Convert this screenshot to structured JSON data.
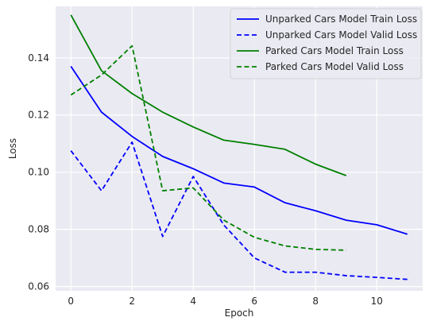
{
  "chart_data": {
    "type": "line",
    "xlabel": "Epoch",
    "ylabel": "Loss",
    "xlim": [
      -0.5,
      11.5
    ],
    "ylim": [
      0.0585,
      0.158
    ],
    "xticks": [
      0,
      2,
      4,
      6,
      8,
      10
    ],
    "yticks": [
      0.06,
      0.08,
      0.1,
      0.12,
      0.14
    ],
    "xtick_labels": [
      "0",
      "2",
      "4",
      "6",
      "8",
      "10"
    ],
    "ytick_labels": [
      "0.06",
      "0.08",
      "0.10",
      "0.12",
      "0.14"
    ],
    "grid": true,
    "legend_position": "top-right",
    "series": [
      {
        "name": "Unparked Cars Model Train Loss",
        "color": "#0000ff",
        "dash": "solid",
        "x": [
          0,
          1,
          2,
          3,
          4,
          5,
          6,
          7,
          8,
          9,
          10,
          11
        ],
        "y": [
          0.137,
          0.121,
          0.1125,
          0.1055,
          0.1012,
          0.0962,
          0.0948,
          0.0893,
          0.0865,
          0.0832,
          0.0816,
          0.0783
        ]
      },
      {
        "name": "Unparked Cars Model Valid Loss",
        "color": "#0000ff",
        "dash": "dashed",
        "x": [
          0,
          1,
          2,
          3,
          4,
          5,
          6,
          7,
          8,
          9,
          10,
          11
        ],
        "y": [
          0.1075,
          0.0935,
          0.1105,
          0.0775,
          0.0985,
          0.0815,
          0.07,
          0.065,
          0.065,
          0.0638,
          0.0632,
          0.0625
        ]
      },
      {
        "name": "Parked Cars Model Train Loss",
        "color": "#008000",
        "dash": "solid",
        "x": [
          0,
          1,
          2,
          3,
          4,
          5,
          6,
          7,
          8,
          9
        ],
        "y": [
          0.155,
          0.1355,
          0.1275,
          0.121,
          0.1158,
          0.1112,
          0.1097,
          0.108,
          0.1028,
          0.0988
        ]
      },
      {
        "name": "Parked Cars Model Valid Loss",
        "color": "#008000",
        "dash": "dashed",
        "x": [
          0,
          1,
          2,
          3,
          4,
          5,
          6,
          7,
          8,
          9
        ],
        "y": [
          0.127,
          0.134,
          0.1442,
          0.0935,
          0.0945,
          0.0832,
          0.0772,
          0.0742,
          0.073,
          0.0727
        ]
      }
    ]
  }
}
